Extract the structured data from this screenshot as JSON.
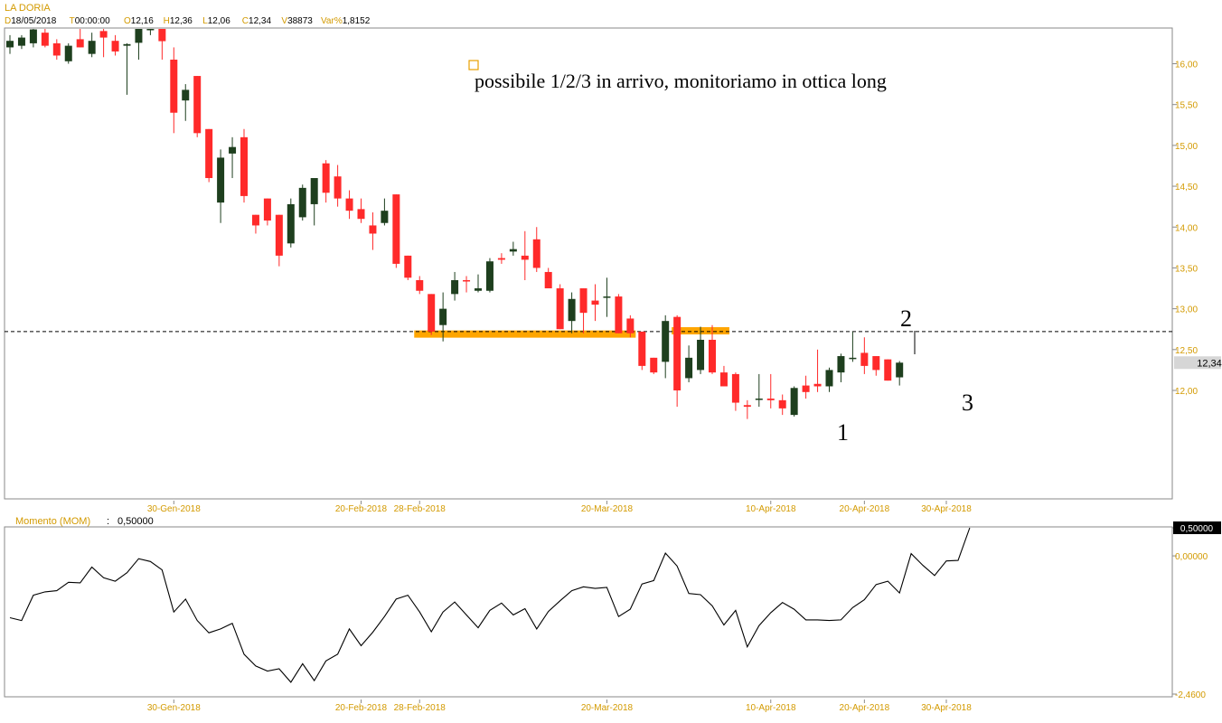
{
  "header": {
    "title": "LA DORIA",
    "fields": [
      {
        "key": "D",
        "value": "18/05/2018"
      },
      {
        "key": "T",
        "value": "00:00:00"
      },
      {
        "key": "O",
        "value": "12,16"
      },
      {
        "key": "H",
        "value": "12,36"
      },
      {
        "key": "L",
        "value": "12,06"
      },
      {
        "key": "C",
        "value": "12,34"
      },
      {
        "key": "V",
        "value": "38873"
      },
      {
        "key": "Var%",
        "value": "1,8152"
      }
    ]
  },
  "colors": {
    "label_orange": "#d39a00",
    "up_candle": "#1e3f1e",
    "down_candle": "#ff2a2a",
    "support_zone": "#ffa500",
    "momentum_line": "#000000",
    "panel_border": "#8a8a8a"
  },
  "annotations": {
    "note": "possibile 1/2/3 in arrivo, monitoriamo in ottica long",
    "points": [
      "1",
      "2",
      "3"
    ]
  },
  "chart_data": [
    {
      "type": "candlestick",
      "title": "LA DORIA",
      "ylim": [
        11.15,
        16.5
      ],
      "y_ticks": [
        "12,00",
        "12,50",
        "13,00",
        "13,50",
        "14,00",
        "14,50",
        "15,00",
        "15,50",
        "16,00"
      ],
      "x_ticks": [
        "30-Gen-2018",
        "20-Feb-2018",
        "28-Feb-2018",
        "20-Mar-2018",
        "10-Apr-2018",
        "20-Apr-2018",
        "30-Apr-2018"
      ],
      "last_price_label": "12,34",
      "last_price": 12.34,
      "reference_level": 12.72,
      "support_zones": [
        {
          "from_index": 35,
          "to_index": 53,
          "price": 12.69
        },
        {
          "from_index": 57,
          "to_index": 61,
          "price": 12.73
        }
      ],
      "candles": [
        {
          "o": 16.2,
          "h": 16.35,
          "l": 16.12,
          "c": 16.28
        },
        {
          "o": 16.22,
          "h": 16.35,
          "l": 16.18,
          "c": 16.32
        },
        {
          "o": 16.25,
          "h": 16.45,
          "l": 16.2,
          "c": 16.42
        },
        {
          "o": 16.38,
          "h": 16.5,
          "l": 16.2,
          "c": 16.22
        },
        {
          "o": 16.25,
          "h": 16.3,
          "l": 16.05,
          "c": 16.1
        },
        {
          "o": 16.03,
          "h": 16.25,
          "l": 16.0,
          "c": 16.22
        },
        {
          "o": 16.3,
          "h": 16.5,
          "l": 16.2,
          "c": 16.2
        },
        {
          "o": 16.12,
          "h": 16.38,
          "l": 16.08,
          "c": 16.28
        },
        {
          "o": 16.4,
          "h": 16.5,
          "l": 16.08,
          "c": 16.32
        },
        {
          "o": 16.28,
          "h": 16.35,
          "l": 16.1,
          "c": 16.15
        },
        {
          "o": 16.22,
          "h": 16.25,
          "l": 15.62,
          "c": 16.24
        },
        {
          "o": 16.28,
          "h": 16.5,
          "l": 16.05,
          "c": 16.45
        },
        {
          "o": 16.45,
          "h": 16.5,
          "l": 16.35,
          "c": 16.45
        },
        {
          "o": 16.45,
          "h": 16.5,
          "l": 16.05,
          "c": 16.3
        },
        {
          "o": 16.05,
          "h": 16.2,
          "l": 15.15,
          "c": 15.4
        },
        {
          "o": 15.55,
          "h": 15.75,
          "l": 15.3,
          "c": 15.68
        },
        {
          "o": 15.85,
          "h": 15.85,
          "l": 15.1,
          "c": 15.15
        },
        {
          "o": 15.2,
          "h": 15.2,
          "l": 14.55,
          "c": 14.6
        },
        {
          "o": 14.3,
          "h": 14.95,
          "l": 14.05,
          "c": 14.85
        },
        {
          "o": 14.9,
          "h": 15.1,
          "l": 14.6,
          "c": 14.98
        },
        {
          "o": 15.1,
          "h": 15.2,
          "l": 14.3,
          "c": 14.38
        },
        {
          "o": 14.15,
          "h": 14.15,
          "l": 13.92,
          "c": 14.02
        },
        {
          "o": 14.35,
          "h": 14.35,
          "l": 14.02,
          "c": 14.08
        },
        {
          "o": 14.15,
          "h": 14.15,
          "l": 13.52,
          "c": 13.65
        },
        {
          "o": 13.8,
          "h": 14.35,
          "l": 13.75,
          "c": 14.28
        },
        {
          "o": 14.12,
          "h": 14.52,
          "l": 14.08,
          "c": 14.48
        },
        {
          "o": 14.28,
          "h": 14.58,
          "l": 14.02,
          "c": 14.6
        },
        {
          "o": 14.78,
          "h": 14.82,
          "l": 14.3,
          "c": 14.42
        },
        {
          "o": 14.62,
          "h": 14.76,
          "l": 14.25,
          "c": 14.35
        },
        {
          "o": 14.35,
          "h": 14.45,
          "l": 14.1,
          "c": 14.2
        },
        {
          "o": 14.22,
          "h": 14.35,
          "l": 14.05,
          "c": 14.1
        },
        {
          "o": 14.02,
          "h": 14.18,
          "l": 13.72,
          "c": 13.92
        },
        {
          "o": 14.05,
          "h": 14.35,
          "l": 14.02,
          "c": 14.2
        },
        {
          "o": 14.4,
          "h": 14.4,
          "l": 13.5,
          "c": 13.55
        },
        {
          "o": 13.65,
          "h": 13.65,
          "l": 13.35,
          "c": 13.38
        },
        {
          "o": 13.35,
          "h": 13.4,
          "l": 13.18,
          "c": 13.22
        },
        {
          "o": 13.18,
          "h": 13.18,
          "l": 12.68,
          "c": 12.72
        },
        {
          "o": 12.8,
          "h": 13.2,
          "l": 12.6,
          "c": 13.0
        },
        {
          "o": 13.18,
          "h": 13.45,
          "l": 13.1,
          "c": 13.35
        },
        {
          "o": 13.35,
          "h": 13.4,
          "l": 13.2,
          "c": 13.34
        },
        {
          "o": 13.22,
          "h": 13.42,
          "l": 13.2,
          "c": 13.25
        },
        {
          "o": 13.22,
          "h": 13.62,
          "l": 13.2,
          "c": 13.58
        },
        {
          "o": 13.62,
          "h": 13.68,
          "l": 13.55,
          "c": 13.6
        },
        {
          "o": 13.7,
          "h": 13.82,
          "l": 13.65,
          "c": 13.73
        },
        {
          "o": 13.65,
          "h": 13.95,
          "l": 13.35,
          "c": 13.6
        },
        {
          "o": 13.85,
          "h": 14.0,
          "l": 13.45,
          "c": 13.5
        },
        {
          "o": 13.45,
          "h": 13.5,
          "l": 13.3,
          "c": 13.25
        },
        {
          "o": 13.25,
          "h": 13.3,
          "l": 12.75,
          "c": 12.75
        },
        {
          "o": 12.85,
          "h": 13.2,
          "l": 12.7,
          "c": 13.12
        },
        {
          "o": 13.25,
          "h": 13.25,
          "l": 12.7,
          "c": 12.95
        },
        {
          "o": 13.1,
          "h": 13.3,
          "l": 12.85,
          "c": 13.05
        },
        {
          "o": 13.15,
          "h": 13.38,
          "l": 12.9,
          "c": 13.15
        },
        {
          "o": 13.15,
          "h": 13.18,
          "l": 12.7,
          "c": 12.7
        },
        {
          "o": 12.88,
          "h": 12.92,
          "l": 12.65,
          "c": 12.7
        },
        {
          "o": 12.72,
          "h": 12.72,
          "l": 12.25,
          "c": 12.3
        },
        {
          "o": 12.4,
          "h": 12.4,
          "l": 12.2,
          "c": 12.22
        },
        {
          "o": 12.35,
          "h": 12.92,
          "l": 12.15,
          "c": 12.85
        },
        {
          "o": 12.9,
          "h": 12.92,
          "l": 11.8,
          "c": 12.0
        },
        {
          "o": 12.15,
          "h": 12.55,
          "l": 12.1,
          "c": 12.4
        },
        {
          "o": 12.25,
          "h": 12.78,
          "l": 12.2,
          "c": 12.62
        },
        {
          "o": 12.62,
          "h": 12.8,
          "l": 12.2,
          "c": 12.22
        },
        {
          "o": 12.22,
          "h": 12.3,
          "l": 12.05,
          "c": 12.05
        },
        {
          "o": 12.2,
          "h": 12.22,
          "l": 11.75,
          "c": 11.85
        },
        {
          "o": 11.82,
          "h": 11.88,
          "l": 11.65,
          "c": 11.8
        },
        {
          "o": 11.9,
          "h": 12.2,
          "l": 11.8,
          "c": 11.9
        },
        {
          "o": 11.9,
          "h": 12.2,
          "l": 11.78,
          "c": 11.88
        },
        {
          "o": 11.88,
          "h": 11.95,
          "l": 11.7,
          "c": 11.78
        },
        {
          "o": 11.7,
          "h": 12.05,
          "l": 11.68,
          "c": 12.03
        },
        {
          "o": 12.06,
          "h": 12.18,
          "l": 11.9,
          "c": 11.98
        },
        {
          "o": 12.08,
          "h": 12.5,
          "l": 11.98,
          "c": 12.05
        },
        {
          "o": 12.05,
          "h": 12.28,
          "l": 11.98,
          "c": 12.25
        },
        {
          "o": 12.22,
          "h": 12.45,
          "l": 12.1,
          "c": 12.42
        },
        {
          "o": 12.4,
          "h": 12.72,
          "l": 12.35,
          "c": 12.4
        },
        {
          "o": 12.46,
          "h": 12.65,
          "l": 12.2,
          "c": 12.3
        },
        {
          "o": 12.42,
          "h": 12.42,
          "l": 12.18,
          "c": 12.25
        },
        {
          "o": 12.38,
          "h": 12.38,
          "l": 12.12,
          "c": 12.12
        },
        {
          "o": 12.16,
          "h": 12.36,
          "l": 12.06,
          "c": 12.34
        }
      ]
    },
    {
      "type": "line",
      "title": "Momento (MOM)",
      "value_label": "0,50000",
      "ylim": [
        -2.46,
        0.5
      ],
      "y_ticks": [
        "0,50000",
        "0,00000",
        "-2,4600"
      ],
      "x_ticks": [
        "30-Gen-2018",
        "20-Feb-2018",
        "28-Feb-2018",
        "20-Mar-2018",
        "10-Apr-2018",
        "20-Apr-2018",
        "30-Apr-2018"
      ],
      "series": [
        {
          "values": [
            -1.1,
            -1.15,
            -0.7,
            -0.64,
            -0.62,
            -0.47,
            -0.48,
            -0.2,
            -0.39,
            -0.45,
            -0.3,
            -0.05,
            -0.1,
            -0.25,
            -1.0,
            -0.77,
            -1.15,
            -1.37,
            -1.3,
            -1.2,
            -1.75,
            -1.96,
            -2.05,
            -2.01,
            -2.25,
            -1.92,
            -2.22,
            -1.87,
            -1.75,
            -1.3,
            -1.6,
            -1.36,
            -1.08,
            -0.77,
            -0.7,
            -1.0,
            -1.35,
            -1.0,
            -0.82,
            -1.05,
            -1.28,
            -0.97,
            -0.84,
            -1.05,
            -0.94,
            -1.3,
            -0.99,
            -0.8,
            -0.62,
            -0.55,
            -0.58,
            -0.56,
            -1.08,
            -0.95,
            -0.5,
            -0.44,
            0.05,
            -0.18,
            -0.67,
            -0.69,
            -0.89,
            -1.23,
            -0.97,
            -1.62,
            -1.24,
            -1.01,
            -0.83,
            -0.95,
            -1.14,
            -1.14,
            -1.15,
            -1.14,
            -0.92,
            -0.78,
            -0.51,
            -0.45,
            -0.66,
            0.04,
            -0.17,
            -0.35,
            -0.09,
            -0.08,
            0.5
          ]
        }
      ]
    }
  ]
}
